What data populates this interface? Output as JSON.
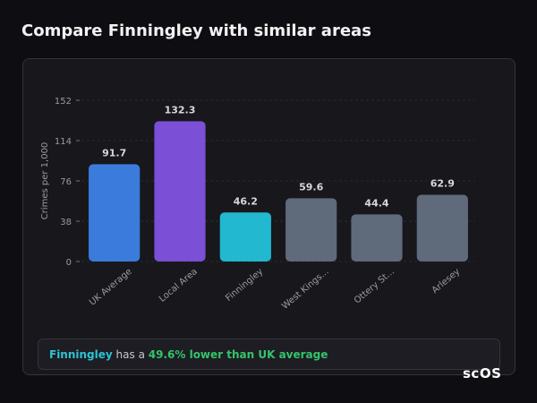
{
  "chart_data": {
    "type": "bar",
    "title": "Compare Finningley with similar areas",
    "y_label": "Crimes per 1,000",
    "categories": [
      "UK Average",
      "Local Area",
      "Finningley",
      "West Kings...",
      "Ottery St...",
      "Arlesey"
    ],
    "values": [
      91.7,
      132.3,
      46.2,
      59.6,
      44.4,
      62.9
    ],
    "colors": [
      "#3a7bdc",
      "#7b4fd6",
      "#22b8cf",
      "#5f6a7b",
      "#5f6a7b",
      "#5f6a7b"
    ],
    "ylim": [
      0,
      152
    ],
    "yticks": [
      0,
      38,
      76,
      114,
      152
    ],
    "grid": true
  },
  "summary": {
    "area": "Finningley",
    "text": "has a",
    "highlight": "49.6% lower than UK average"
  },
  "brand": "scOS"
}
